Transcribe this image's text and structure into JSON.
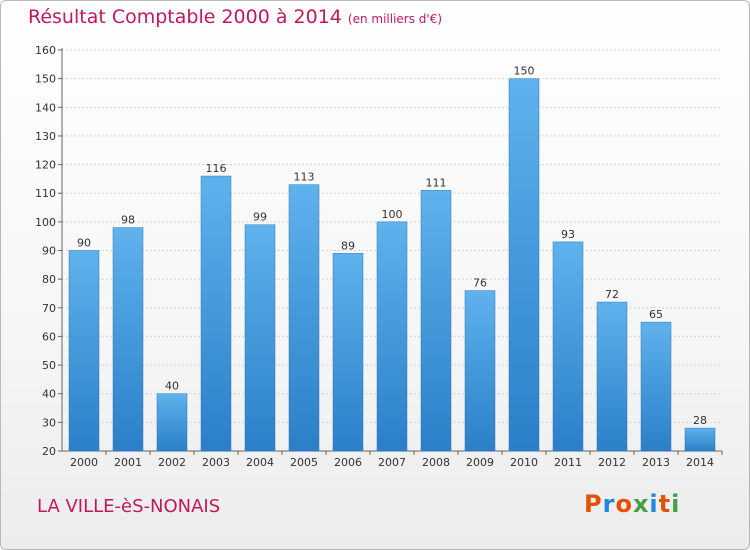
{
  "header": {
    "title": "Résultat Comptable 2000 à 2014",
    "unit": "(en milliers d'€)"
  },
  "footer": {
    "location": "LA VILLE-èS-NONAIS",
    "logo_text": "Proxiti",
    "logo_colors": [
      "#e65100",
      "#1e88e5",
      "#e65100",
      "#43a047",
      "#1e88e5",
      "#e65100",
      "#43a047"
    ]
  },
  "chart_data": {
    "type": "bar",
    "title": "Résultat Comptable 2000 à 2014",
    "subtitle": "(en milliers d'€)",
    "xlabel": "",
    "ylabel": "",
    "categories": [
      "2000",
      "2001",
      "2002",
      "2003",
      "2004",
      "2005",
      "2006",
      "2007",
      "2008",
      "2009",
      "2010",
      "2011",
      "2012",
      "2013",
      "2014"
    ],
    "values": [
      90,
      98,
      40,
      116,
      99,
      113,
      89,
      100,
      111,
      76,
      150,
      93,
      72,
      65,
      28
    ],
    "ylim": [
      20,
      160
    ],
    "yticks": [
      20,
      30,
      40,
      50,
      60,
      70,
      80,
      90,
      100,
      110,
      120,
      130,
      140,
      150,
      160
    ],
    "grid": true,
    "legend": "none",
    "bar_color": "#3d95dd"
  }
}
